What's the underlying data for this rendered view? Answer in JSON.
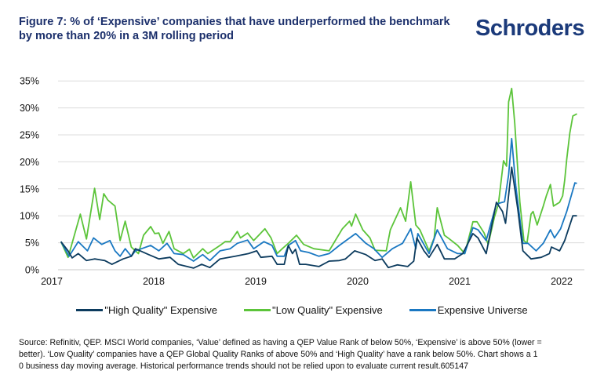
{
  "header": {
    "title_line1": "Figure 7: % of ‘Expensive’ companies that have underperformed the benchmark",
    "title_line2": "by more than 20% in a 3M rolling period",
    "logo": "Schroders"
  },
  "footer": {
    "lines": [
      "Source: Refinitiv, QEP. MSCI World companies, ‘Value’ defined as having a QEP Value Rank of below 50%, ‘Expensive’ is above 50% (lower =",
      "better). ‘Low Quality’ companies have a QEP Global Quality Ranks of above 50% and ‘High Quality’ have a rank below 50%. Chart shows a 1",
      "0 business day moving average. Historical performance trends should not be relied upon to evaluate current result.605147"
    ]
  },
  "chart_data": {
    "type": "line",
    "title": "Figure 7: % of ‘Expensive’ companies that have underperformed the benchmark by more than 20% in a 3M rolling period",
    "xlabel": "",
    "ylabel": "",
    "xlim": [
      2017,
      2022.25
    ],
    "ylim": [
      0,
      35
    ],
    "x_ticks": [
      2017,
      2018,
      2019,
      2020,
      2021,
      2022
    ],
    "x_tick_labels": [
      "2017",
      "2018",
      "2019",
      "2020",
      "2021",
      "2022"
    ],
    "y_ticks": [
      0,
      5,
      10,
      15,
      20,
      25,
      30,
      35
    ],
    "y_tick_labels": [
      "0%",
      "5%",
      "10%",
      "15%",
      "20%",
      "25%",
      "30%",
      "35%"
    ],
    "grid": "horizontal",
    "legend": "bottom",
    "series": [
      {
        "name": "\"High Quality\" Expensive",
        "color": "#0c3b5e",
        "points": [
          [
            2017.09,
            5.2
          ],
          [
            2017.16,
            3.5
          ],
          [
            2017.2,
            2.2
          ],
          [
            2017.26,
            3.0
          ],
          [
            2017.34,
            1.7
          ],
          [
            2017.42,
            2.0
          ],
          [
            2017.52,
            1.7
          ],
          [
            2017.59,
            1.0
          ],
          [
            2017.7,
            2.0
          ],
          [
            2017.78,
            2.5
          ],
          [
            2017.82,
            3.9
          ],
          [
            2017.95,
            2.8
          ],
          [
            2018.05,
            2.0
          ],
          [
            2018.16,
            2.3
          ],
          [
            2018.24,
            1.0
          ],
          [
            2018.39,
            0.3
          ],
          [
            2018.47,
            1.0
          ],
          [
            2018.55,
            0.4
          ],
          [
            2018.65,
            2.0
          ],
          [
            2018.8,
            2.5
          ],
          [
            2018.93,
            3.0
          ],
          [
            2019.01,
            3.5
          ],
          [
            2019.05,
            2.3
          ],
          [
            2019.16,
            2.5
          ],
          [
            2019.21,
            1.0
          ],
          [
            2019.28,
            1.0
          ],
          [
            2019.32,
            4.5
          ],
          [
            2019.36,
            3.0
          ],
          [
            2019.39,
            3.8
          ],
          [
            2019.43,
            1.0
          ],
          [
            2019.49,
            1.0
          ],
          [
            2019.62,
            0.6
          ],
          [
            2019.72,
            1.6
          ],
          [
            2019.82,
            1.7
          ],
          [
            2019.88,
            2.0
          ],
          [
            2019.97,
            3.5
          ],
          [
            2020.08,
            2.8
          ],
          [
            2020.17,
            1.7
          ],
          [
            2020.24,
            2.0
          ],
          [
            2020.3,
            0.4
          ],
          [
            2020.39,
            0.9
          ],
          [
            2020.49,
            0.6
          ],
          [
            2020.55,
            1.6
          ],
          [
            2020.58,
            5.9
          ],
          [
            2020.65,
            3.5
          ],
          [
            2020.7,
            2.3
          ],
          [
            2020.78,
            4.7
          ],
          [
            2020.85,
            2.0
          ],
          [
            2020.95,
            2.0
          ],
          [
            2021.03,
            3.0
          ],
          [
            2021.13,
            6.7
          ],
          [
            2021.18,
            5.9
          ],
          [
            2021.26,
            3.0
          ],
          [
            2021.36,
            12.5
          ],
          [
            2021.42,
            10.8
          ],
          [
            2021.45,
            8.6
          ],
          [
            2021.51,
            19.0
          ],
          [
            2021.57,
            11.2
          ],
          [
            2021.62,
            3.5
          ],
          [
            2021.7,
            2.0
          ],
          [
            2021.8,
            2.3
          ],
          [
            2021.88,
            3.0
          ],
          [
            2021.9,
            4.2
          ],
          [
            2021.98,
            3.5
          ],
          [
            2022.03,
            5.4
          ],
          [
            2022.11,
            10.0
          ],
          [
            2022.15,
            10.0
          ]
        ]
      },
      {
        "name": "\"Low Quality\" Expensive",
        "color": "#5cc43a",
        "points": [
          [
            2017.09,
            5.2
          ],
          [
            2017.16,
            2.3
          ],
          [
            2017.28,
            10.3
          ],
          [
            2017.34,
            5.7
          ],
          [
            2017.42,
            15.1
          ],
          [
            2017.47,
            9.3
          ],
          [
            2017.51,
            14.1
          ],
          [
            2017.55,
            12.9
          ],
          [
            2017.62,
            11.8
          ],
          [
            2017.67,
            5.4
          ],
          [
            2017.72,
            9.0
          ],
          [
            2017.78,
            4.2
          ],
          [
            2017.85,
            3.0
          ],
          [
            2017.9,
            6.4
          ],
          [
            2017.97,
            8.0
          ],
          [
            2018.01,
            6.7
          ],
          [
            2018.05,
            6.8
          ],
          [
            2018.09,
            4.9
          ],
          [
            2018.15,
            7.1
          ],
          [
            2018.2,
            3.9
          ],
          [
            2018.29,
            3.0
          ],
          [
            2018.35,
            3.8
          ],
          [
            2018.39,
            2.2
          ],
          [
            2018.48,
            3.9
          ],
          [
            2018.53,
            3.0
          ],
          [
            2018.65,
            4.5
          ],
          [
            2018.7,
            5.2
          ],
          [
            2018.75,
            5.2
          ],
          [
            2018.82,
            7.1
          ],
          [
            2018.85,
            5.9
          ],
          [
            2018.92,
            6.8
          ],
          [
            2018.98,
            5.4
          ],
          [
            2019.03,
            6.4
          ],
          [
            2019.09,
            7.6
          ],
          [
            2019.15,
            5.9
          ],
          [
            2019.21,
            3.0
          ],
          [
            2019.26,
            3.9
          ],
          [
            2019.32,
            4.9
          ],
          [
            2019.4,
            6.4
          ],
          [
            2019.47,
            4.7
          ],
          [
            2019.57,
            3.9
          ],
          [
            2019.72,
            3.5
          ],
          [
            2019.85,
            7.6
          ],
          [
            2019.92,
            9.0
          ],
          [
            2019.94,
            8.1
          ],
          [
            2019.98,
            10.3
          ],
          [
            2020.05,
            7.4
          ],
          [
            2020.12,
            5.9
          ],
          [
            2020.17,
            3.6
          ],
          [
            2020.28,
            3.5
          ],
          [
            2020.32,
            7.4
          ],
          [
            2020.42,
            11.5
          ],
          [
            2020.47,
            9.0
          ],
          [
            2020.52,
            16.3
          ],
          [
            2020.57,
            8.3
          ],
          [
            2020.61,
            7.4
          ],
          [
            2020.7,
            3.5
          ],
          [
            2020.75,
            5.9
          ],
          [
            2020.78,
            11.5
          ],
          [
            2020.85,
            6.4
          ],
          [
            2020.9,
            5.7
          ],
          [
            2020.98,
            4.5
          ],
          [
            2021.05,
            3.0
          ],
          [
            2021.13,
            8.9
          ],
          [
            2021.17,
            8.9
          ],
          [
            2021.24,
            6.8
          ],
          [
            2021.28,
            4.7
          ],
          [
            2021.34,
            9.7
          ],
          [
            2021.38,
            12.2
          ],
          [
            2021.43,
            20.2
          ],
          [
            2021.46,
            19.2
          ],
          [
            2021.48,
            31.1
          ],
          [
            2021.51,
            33.6
          ],
          [
            2021.54,
            27.2
          ],
          [
            2021.59,
            12.6
          ],
          [
            2021.63,
            5.4
          ],
          [
            2021.66,
            4.9
          ],
          [
            2021.7,
            10.3
          ],
          [
            2021.72,
            10.8
          ],
          [
            2021.76,
            8.3
          ],
          [
            2021.82,
            11.8
          ],
          [
            2021.85,
            13.7
          ],
          [
            2021.89,
            15.8
          ],
          [
            2021.92,
            11.8
          ],
          [
            2021.98,
            12.5
          ],
          [
            2022.01,
            13.7
          ],
          [
            2022.03,
            16.6
          ],
          [
            2022.05,
            20.5
          ],
          [
            2022.08,
            25.3
          ],
          [
            2022.11,
            28.5
          ],
          [
            2022.15,
            28.9
          ]
        ]
      },
      {
        "name": "Expensive Universe",
        "color": "#1a78c2",
        "points": [
          [
            2017.09,
            5.2
          ],
          [
            2017.17,
            2.5
          ],
          [
            2017.26,
            5.2
          ],
          [
            2017.35,
            3.5
          ],
          [
            2017.41,
            5.9
          ],
          [
            2017.49,
            4.7
          ],
          [
            2017.57,
            5.4
          ],
          [
            2017.62,
            3.5
          ],
          [
            2017.67,
            2.5
          ],
          [
            2017.72,
            3.9
          ],
          [
            2017.78,
            2.5
          ],
          [
            2017.82,
            3.5
          ],
          [
            2017.88,
            3.9
          ],
          [
            2017.97,
            4.5
          ],
          [
            2018.05,
            3.5
          ],
          [
            2018.13,
            4.9
          ],
          [
            2018.2,
            3.0
          ],
          [
            2018.29,
            2.8
          ],
          [
            2018.39,
            1.6
          ],
          [
            2018.48,
            2.8
          ],
          [
            2018.55,
            1.7
          ],
          [
            2018.65,
            3.5
          ],
          [
            2018.75,
            3.9
          ],
          [
            2018.82,
            4.9
          ],
          [
            2018.92,
            5.5
          ],
          [
            2018.98,
            3.9
          ],
          [
            2019.08,
            5.2
          ],
          [
            2019.16,
            4.5
          ],
          [
            2019.21,
            2.5
          ],
          [
            2019.28,
            2.5
          ],
          [
            2019.32,
            4.5
          ],
          [
            2019.39,
            5.4
          ],
          [
            2019.44,
            3.5
          ],
          [
            2019.52,
            3.2
          ],
          [
            2019.62,
            2.5
          ],
          [
            2019.72,
            3.0
          ],
          [
            2019.82,
            4.5
          ],
          [
            2019.98,
            6.7
          ],
          [
            2020.08,
            4.9
          ],
          [
            2020.16,
            3.9
          ],
          [
            2020.24,
            2.3
          ],
          [
            2020.34,
            3.9
          ],
          [
            2020.44,
            4.9
          ],
          [
            2020.52,
            7.6
          ],
          [
            2020.57,
            3.9
          ],
          [
            2020.59,
            6.7
          ],
          [
            2020.7,
            3.0
          ],
          [
            2020.78,
            7.4
          ],
          [
            2020.88,
            3.9
          ],
          [
            2020.98,
            3.0
          ],
          [
            2021.05,
            3.0
          ],
          [
            2021.13,
            7.8
          ],
          [
            2021.18,
            7.4
          ],
          [
            2021.26,
            5.4
          ],
          [
            2021.36,
            12.2
          ],
          [
            2021.44,
            12.6
          ],
          [
            2021.48,
            17.6
          ],
          [
            2021.51,
            24.3
          ],
          [
            2021.55,
            15.6
          ],
          [
            2021.62,
            4.9
          ],
          [
            2021.67,
            4.9
          ],
          [
            2021.75,
            3.5
          ],
          [
            2021.82,
            4.9
          ],
          [
            2021.89,
            7.4
          ],
          [
            2021.93,
            5.9
          ],
          [
            2021.99,
            7.6
          ],
          [
            2022.05,
            10.8
          ],
          [
            2022.13,
            16.1
          ],
          [
            2022.15,
            16.0
          ]
        ]
      }
    ]
  }
}
